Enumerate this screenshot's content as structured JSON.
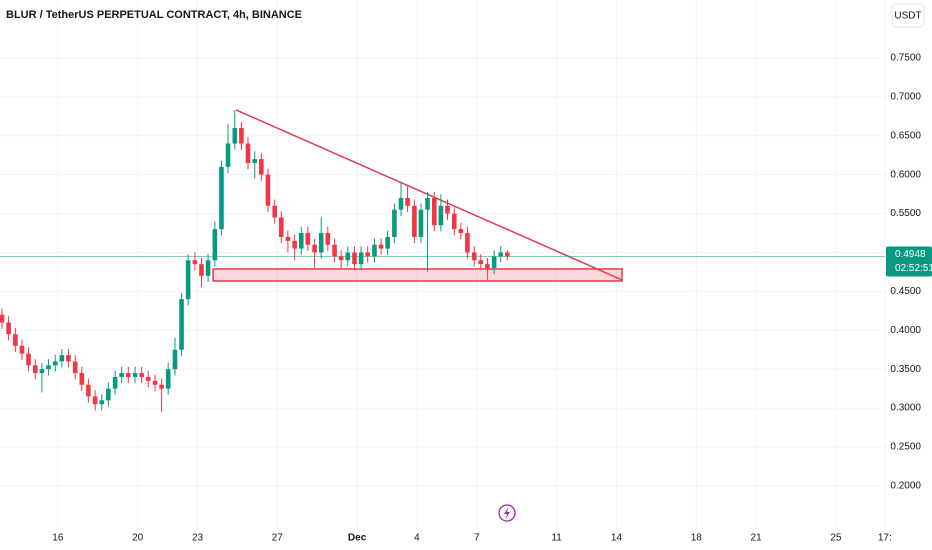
{
  "chart_data": {
    "type": "candlestick",
    "title": "BLUR / TetherUS PERPETUAL CONTRACT, 4h, BINANCE",
    "currency": "USDT",
    "countdown": "02:52:51",
    "last_price": 0.4948,
    "up_color": "#089981",
    "down_color": "#f23645",
    "grid": true,
    "xlim": [
      13.1,
      57.46
    ],
    "ylim": [
      0.1433,
      0.8245
    ],
    "xticks": [
      16,
      20,
      23,
      27,
      {
        "value": 31,
        "label": "Dec"
      },
      {
        "value": 34,
        "label": "4"
      },
      {
        "value": 37,
        "label": "7"
      },
      {
        "value": 41,
        "label": "11"
      },
      {
        "value": 44,
        "label": "14"
      },
      {
        "value": 48,
        "label": "18"
      },
      {
        "value": 51,
        "label": "21"
      },
      {
        "value": 55,
        "label": "25"
      },
      {
        "value": 57.45,
        "label": "17:"
      }
    ],
    "yticks": [
      {
        "value": 0.2,
        "label": "0.2000"
      },
      {
        "value": 0.25,
        "label": "0.2500"
      },
      {
        "value": 0.3,
        "label": "0.3000"
      },
      {
        "value": 0.35,
        "label": "0.3500"
      },
      {
        "value": 0.4,
        "label": "0.4000"
      },
      {
        "value": 0.45,
        "label": "0.4500"
      },
      {
        "value": 0.5,
        "label": "0.5000"
      },
      {
        "value": 0.55,
        "label": "0.5500"
      },
      {
        "value": 0.6,
        "label": "0.6000"
      },
      {
        "value": 0.65,
        "label": "0.6500"
      },
      {
        "value": 0.7,
        "label": "0.7000"
      },
      {
        "value": 0.75,
        "label": "0.7500"
      }
    ],
    "x": [
      13.2,
      13.53,
      13.87,
      14.2,
      14.53,
      14.87,
      15.2,
      15.53,
      15.87,
      16.2,
      16.53,
      16.87,
      17.2,
      17.53,
      17.87,
      18.2,
      18.53,
      18.87,
      19.2,
      19.53,
      19.87,
      20.2,
      20.53,
      20.87,
      21.2,
      21.53,
      21.87,
      22.2,
      22.53,
      22.87,
      23.2,
      23.53,
      23.87,
      24.2,
      24.53,
      24.87,
      25.2,
      25.53,
      25.87,
      26.2,
      26.53,
      26.87,
      27.2,
      27.53,
      27.87,
      28.2,
      28.53,
      28.87,
      29.2,
      29.53,
      29.87,
      30.2,
      30.53,
      30.87,
      31.2,
      31.53,
      31.87,
      32.2,
      32.53,
      32.87,
      33.2,
      33.53,
      33.87,
      34.2,
      34.53,
      34.87,
      35.2,
      35.53,
      35.87,
      36.2,
      36.53,
      36.87,
      37.2,
      37.53,
      37.87,
      38.2,
      38.53
    ],
    "open": [
      0.42,
      0.41,
      0.395,
      0.38,
      0.37,
      0.355,
      0.345,
      0.35,
      0.355,
      0.36,
      0.368,
      0.36,
      0.345,
      0.33,
      0.315,
      0.305,
      0.31,
      0.325,
      0.34,
      0.345,
      0.34,
      0.345,
      0.34,
      0.335,
      0.33,
      0.325,
      0.35,
      0.375,
      0.44,
      0.49,
      0.485,
      0.47,
      0.49,
      0.53,
      0.61,
      0.64,
      0.66,
      0.64,
      0.615,
      0.62,
      0.6,
      0.56,
      0.545,
      0.52,
      0.515,
      0.505,
      0.525,
      0.51,
      0.5,
      0.525,
      0.51,
      0.495,
      0.49,
      0.5,
      0.485,
      0.5,
      0.495,
      0.51,
      0.505,
      0.52,
      0.555,
      0.57,
      0.56,
      0.52,
      0.555,
      0.57,
      0.535,
      0.56,
      0.55,
      0.53,
      0.525,
      0.5,
      0.49,
      0.485,
      0.48,
      0.495,
      0.5
    ],
    "high": [
      0.428,
      0.418,
      0.403,
      0.388,
      0.378,
      0.363,
      0.358,
      0.363,
      0.368,
      0.376,
      0.376,
      0.368,
      0.353,
      0.338,
      0.323,
      0.318,
      0.333,
      0.348,
      0.353,
      0.353,
      0.353,
      0.353,
      0.348,
      0.343,
      0.338,
      0.358,
      0.39,
      0.448,
      0.498,
      0.5,
      0.493,
      0.498,
      0.54,
      0.618,
      0.665,
      0.683,
      0.668,
      0.648,
      0.63,
      0.628,
      0.608,
      0.568,
      0.553,
      0.528,
      0.523,
      0.533,
      0.533,
      0.518,
      0.545,
      0.533,
      0.518,
      0.503,
      0.508,
      0.508,
      0.508,
      0.508,
      0.518,
      0.518,
      0.528,
      0.563,
      0.59,
      0.585,
      0.568,
      0.563,
      0.578,
      0.578,
      0.575,
      0.568,
      0.558,
      0.538,
      0.533,
      0.508,
      0.498,
      0.493,
      0.503,
      0.508,
      0.503
    ],
    "low": [
      0.402,
      0.387,
      0.372,
      0.362,
      0.347,
      0.337,
      0.32,
      0.342,
      0.347,
      0.352,
      0.352,
      0.337,
      0.322,
      0.307,
      0.297,
      0.297,
      0.302,
      0.317,
      0.332,
      0.332,
      0.332,
      0.332,
      0.327,
      0.322,
      0.295,
      0.317,
      0.342,
      0.367,
      0.432,
      0.477,
      0.455,
      0.462,
      0.482,
      0.522,
      0.602,
      0.632,
      0.632,
      0.607,
      0.595,
      0.592,
      0.552,
      0.537,
      0.512,
      0.5,
      0.49,
      0.497,
      0.502,
      0.48,
      0.492,
      0.502,
      0.487,
      0.478,
      0.482,
      0.477,
      0.477,
      0.487,
      0.487,
      0.497,
      0.497,
      0.512,
      0.547,
      0.552,
      0.512,
      0.512,
      0.475,
      0.527,
      0.527,
      0.542,
      0.522,
      0.517,
      0.492,
      0.482,
      0.477,
      0.465,
      0.472,
      0.487,
      0.49
    ],
    "close": [
      0.41,
      0.395,
      0.38,
      0.37,
      0.355,
      0.345,
      0.35,
      0.355,
      0.36,
      0.368,
      0.36,
      0.345,
      0.33,
      0.315,
      0.305,
      0.31,
      0.325,
      0.34,
      0.345,
      0.34,
      0.345,
      0.34,
      0.335,
      0.33,
      0.325,
      0.35,
      0.375,
      0.44,
      0.49,
      0.485,
      0.47,
      0.49,
      0.53,
      0.61,
      0.64,
      0.66,
      0.64,
      0.615,
      0.62,
      0.6,
      0.56,
      0.545,
      0.52,
      0.515,
      0.505,
      0.525,
      0.51,
      0.5,
      0.525,
      0.51,
      0.495,
      0.49,
      0.5,
      0.485,
      0.5,
      0.495,
      0.51,
      0.505,
      0.52,
      0.555,
      0.57,
      0.56,
      0.52,
      0.555,
      0.57,
      0.535,
      0.56,
      0.55,
      0.53,
      0.525,
      0.5,
      0.49,
      0.485,
      0.48,
      0.495,
      0.5,
      0.4948
    ],
    "trend_line": {
      "color": "#e53950",
      "x": [
        24.93,
        44.28
      ],
      "y": [
        0.6832,
        0.4647
      ]
    },
    "support_zone": {
      "color": "#e53950",
      "x": [
        23.78,
        44.28
      ],
      "y": [
        0.4788,
        0.4634
      ]
    }
  }
}
